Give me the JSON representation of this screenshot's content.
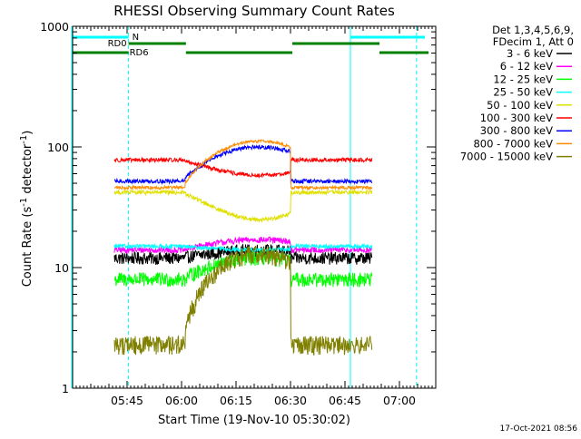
{
  "chart_data": {
    "type": "line",
    "title": "RHESSI Observing Summary Count Rates",
    "xlabel": "Start Time (19-Nov-10 05:30:02)",
    "ylabel_main": "Count Rate (s",
    "ylabel_exp1": "-1",
    "ylabel_mid": " detector",
    "ylabel_exp2": "-1",
    "ylabel_end": ")",
    "footer": "17-Oct-2021 08:56",
    "x_range_minutes": [
      0,
      100
    ],
    "y_range": [
      1,
      1000
    ],
    "y_scale": "log",
    "x_ticks": [
      {
        "t": 15,
        "label": "05:45"
      },
      {
        "t": 30,
        "label": "06:00"
      },
      {
        "t": 45,
        "label": "06:15"
      },
      {
        "t": 60,
        "label": "06:30"
      },
      {
        "t": 75,
        "label": "06:45"
      },
      {
        "t": 90,
        "label": "07:00"
      }
    ],
    "y_ticks": [
      {
        "v": 1,
        "label": "1"
      },
      {
        "v": 10,
        "label": "10"
      },
      {
        "v": 100,
        "label": "100"
      },
      {
        "v": 1000,
        "label": "1000"
      }
    ],
    "legend_header": [
      "Det 1,3,4,5,6,9,",
      "FDecim 1, Att 0"
    ],
    "series": [
      {
        "name": "3 - 6 keV",
        "color": "#000000",
        "base": 12,
        "peak": 14,
        "noise": 0.12,
        "start": 11.5,
        "end": 82.5
      },
      {
        "name": "6 - 12 keV",
        "color": "#ff00ff",
        "base": 14,
        "peak": 17,
        "noise": 0.06,
        "start": 11.5,
        "end": 82.5
      },
      {
        "name": "12 - 25 keV",
        "color": "#00ff00",
        "base": 8,
        "peak": 12,
        "noise": 0.14,
        "start": 11.5,
        "end": 82.5
      },
      {
        "name": "25 - 50 keV",
        "color": "#00ffff",
        "base": 15,
        "peak": 14,
        "noise": 0.04,
        "start": 11.5,
        "end": 82.5
      },
      {
        "name": "50 - 100 keV",
        "color": "#e0e000",
        "base": 42,
        "peak": 25,
        "noise": 0.04,
        "start": 11.5,
        "end": 82.5
      },
      {
        "name": "100 - 300 keV",
        "color": "#ff0000",
        "base": 78,
        "peak": 58,
        "noise": 0.04,
        "start": 11.5,
        "end": 82.5
      },
      {
        "name": "300 - 800 keV",
        "color": "#0000ff",
        "base": 52,
        "peak": 100,
        "noise": 0.04,
        "start": 11.5,
        "end": 82.5
      },
      {
        "name": "800 - 7000 keV",
        "color": "#ff8c00",
        "base": 46,
        "peak": 112,
        "noise": 0.03,
        "start": 11.5,
        "end": 82.5
      },
      {
        "name": "7000 - 15000 keV",
        "color": "#808000",
        "base": 2.3,
        "peak": 13,
        "noise": 0.18,
        "start": 11.5,
        "end": 82.5
      }
    ],
    "flags": {
      "saa_label": "N",
      "rd0_label": "RD0",
      "rd6_label": "RD6",
      "cyan_color": "#00ffff",
      "green_color": "#008000"
    },
    "night_edges_minutes": [
      -0.5,
      15.4,
      76.5,
      94.7
    ]
  }
}
